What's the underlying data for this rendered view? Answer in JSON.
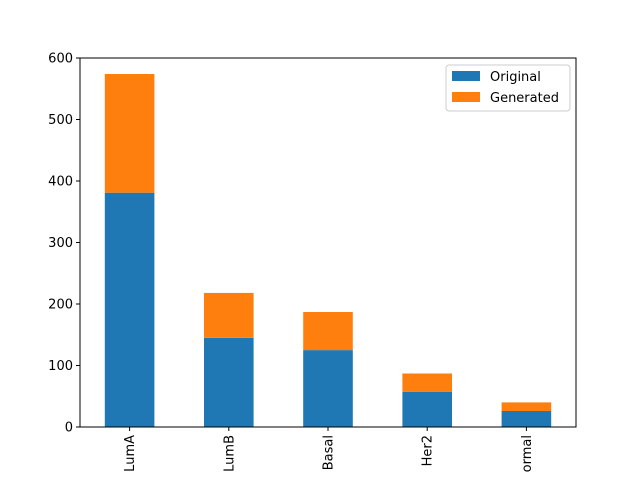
{
  "chart_data": {
    "type": "bar",
    "stacked": true,
    "categories": [
      "LumA",
      "LumB",
      "Basal",
      "Her2",
      "ormal"
    ],
    "series": [
      {
        "name": "Original",
        "color": "#1f77b4",
        "values": [
          381,
          145,
          125,
          57,
          26
        ]
      },
      {
        "name": "Generated",
        "color": "#ff7f0e",
        "values": [
          193,
          73,
          62,
          30,
          14
        ]
      }
    ],
    "title": "",
    "xlabel": "",
    "ylabel": "",
    "ylim": [
      0,
      600
    ],
    "yticks": [
      "0",
      "100",
      "200",
      "300",
      "400",
      "500",
      "600"
    ],
    "grid": false,
    "legend_position": "upper right"
  }
}
